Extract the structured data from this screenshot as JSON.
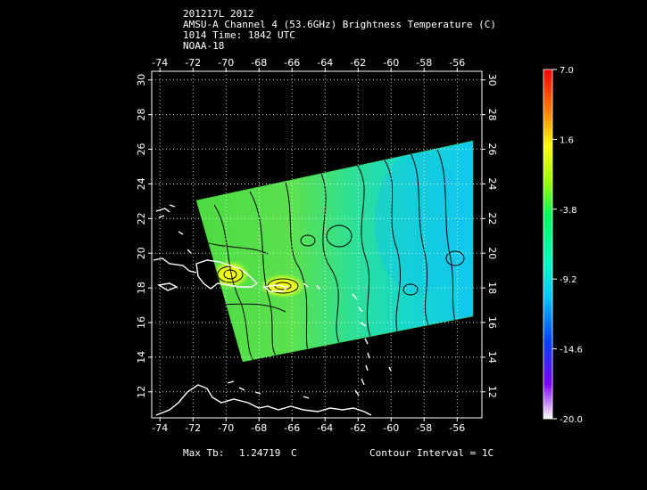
{
  "header": {
    "line1": "201217L 2012",
    "line2": "AMSU-A Channel 4 (53.6GHz) Brightness Temperature (C)",
    "line3": "1014 Time: 1842 UTC",
    "line4": "NOAA-18"
  },
  "map": {
    "lon_ticks": [
      "-74",
      "-72",
      "-70",
      "-68",
      "-66",
      "-64",
      "-62",
      "-60",
      "-58",
      "-56"
    ],
    "lat_ticks": [
      "30",
      "28",
      "26",
      "24",
      "22",
      "20",
      "18",
      "16",
      "14",
      "12"
    ],
    "lon_range": [
      -74.5,
      -54.5
    ],
    "lat_range": [
      10.5,
      30.5
    ],
    "grid": true,
    "coast_color": "#ffffff"
  },
  "colorbar": {
    "labels": [
      "7.0",
      "1.6",
      "-3.8",
      "-9.2",
      "-14.6",
      "-20.0"
    ],
    "range": [
      -20.0,
      7.0
    ],
    "colors": [
      "#ffffff",
      "#8000ff",
      "#0000ff",
      "#00c8ff",
      "#00ff80",
      "#a0ff00",
      "#ffff00",
      "#ff8000",
      "#ff0000"
    ]
  },
  "footer": {
    "max_tb_label": "Max Tb:",
    "max_tb_value": "1.24719",
    "max_tb_unit": "C",
    "contour_label": "Contour Interval = 1C"
  }
}
